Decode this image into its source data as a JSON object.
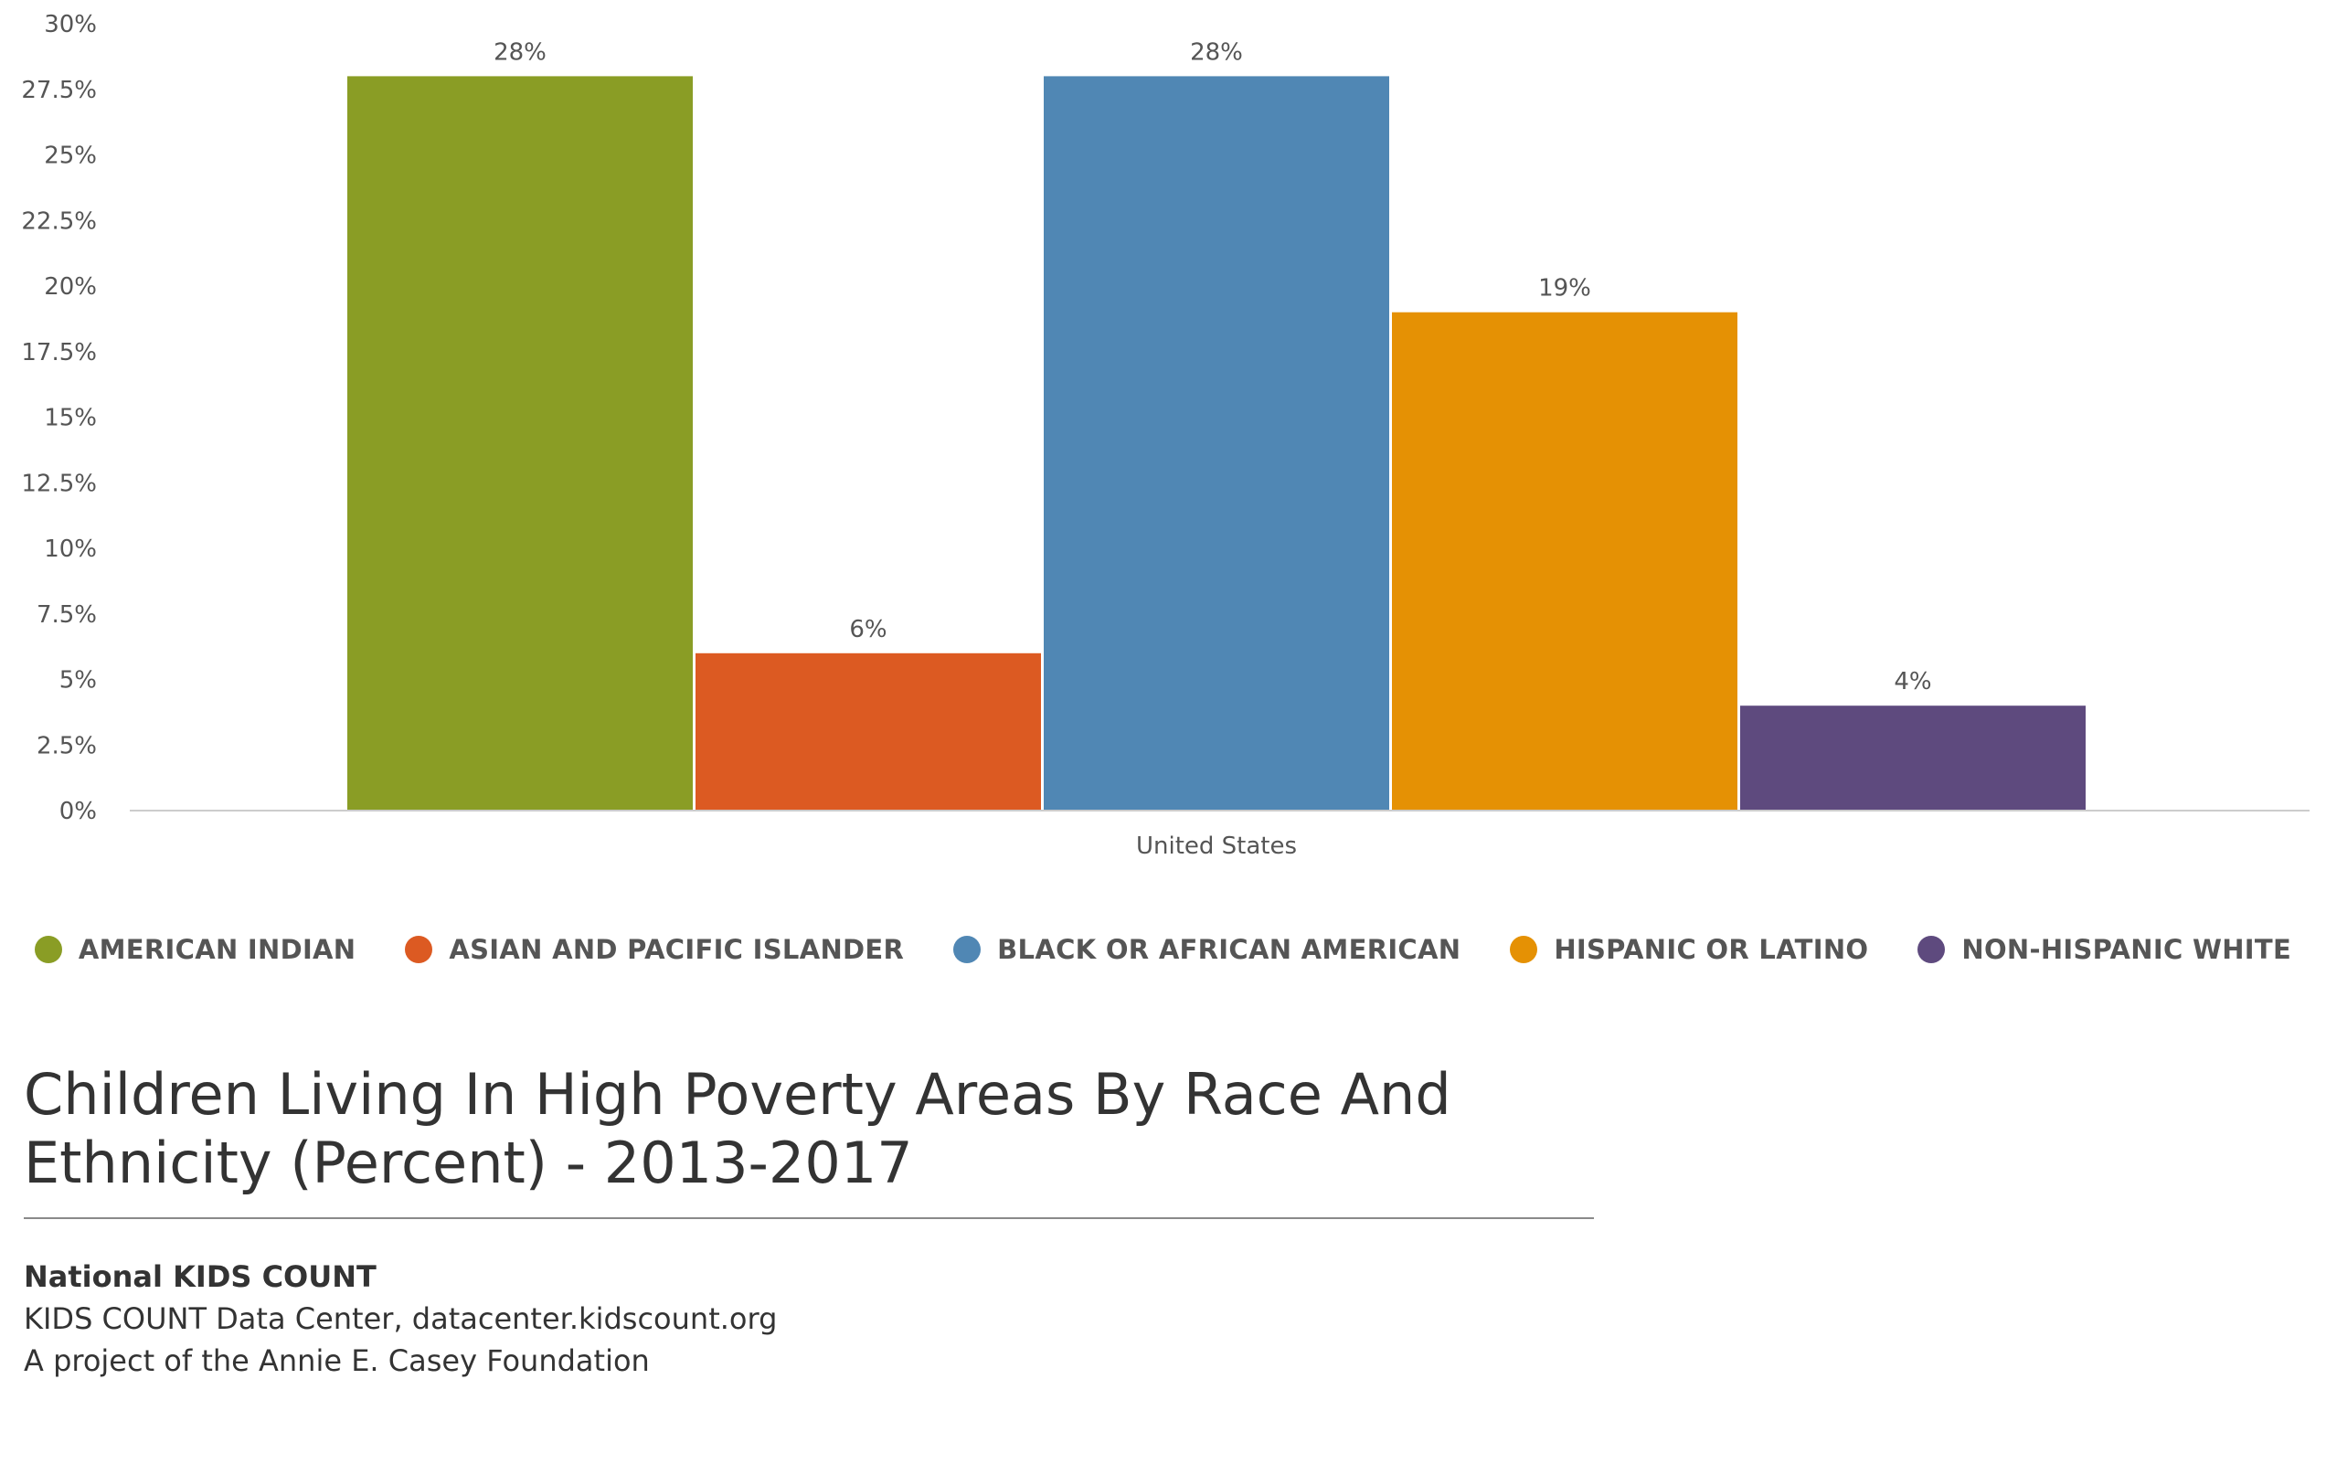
{
  "chart_data": {
    "type": "bar",
    "categories": [
      "United States"
    ],
    "series": [
      {
        "name": "AMERICAN INDIAN",
        "values": [
          28
        ],
        "color": "#8a9d25",
        "label": "28%"
      },
      {
        "name": "ASIAN AND PACIFIC ISLANDER",
        "values": [
          6
        ],
        "color": "#dc5a22",
        "label": "6%"
      },
      {
        "name": "BLACK OR AFRICAN AMERICAN",
        "values": [
          28
        ],
        "color": "#5087b4",
        "label": "28%"
      },
      {
        "name": "HISPANIC OR LATINO",
        "values": [
          19
        ],
        "color": "#e59104",
        "label": "19%"
      },
      {
        "name": "NON-HISPANIC WHITE",
        "values": [
          4
        ],
        "color": "#5e4a7e",
        "label": "4%"
      }
    ],
    "y_ticks": [
      "0%",
      "2.5%",
      "5%",
      "7.5%",
      "10%",
      "12.5%",
      "15%",
      "17.5%",
      "20%",
      "22.5%",
      "25%",
      "27.5%",
      "30%"
    ],
    "ylim": [
      0,
      30
    ],
    "legend_position": "bottom",
    "grid": false
  },
  "title": "Children Living In High Poverty Areas By Race And Ethnicity (Percent) - 2013-2017",
  "footer": {
    "org": "National KIDS COUNT",
    "line2": "KIDS COUNT Data Center, datacenter.kidscount.org",
    "line3": "A project of the Annie E. Casey Foundation"
  }
}
